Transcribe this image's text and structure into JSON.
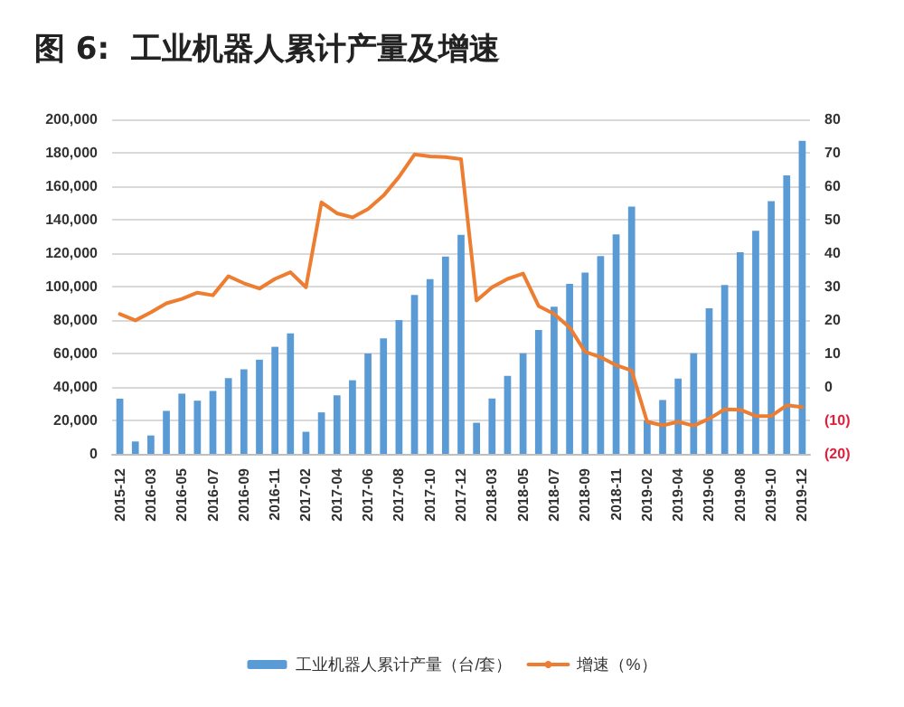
{
  "chart_data": {
    "type": "bar",
    "title": "图 6:  工业机器人累计产量及增速",
    "categories": [
      "2015-12",
      null,
      "2016-03",
      null,
      "2016-05",
      null,
      "2016-07",
      null,
      "2016-09",
      null,
      "2016-11",
      null,
      "2017-02",
      null,
      "2017-04",
      null,
      "2017-06",
      null,
      "2017-08",
      null,
      "2017-10",
      null,
      "2017-12",
      null,
      "2018-03",
      null,
      "2018-05",
      null,
      "2018-07",
      null,
      "2018-09",
      null,
      "2018-11",
      null,
      "2019-02",
      null,
      "2019-04",
      null,
      "2019-06",
      null,
      "2019-08",
      null,
      "2019-10",
      null,
      "2019-12"
    ],
    "series": [
      {
        "name": "工业机器人累计产量（台/套）",
        "color": "#5b9bd5",
        "values": [
          33000,
          7400,
          11000,
          25700,
          36000,
          31800,
          37600,
          45300,
          50500,
          56300,
          64000,
          72000,
          13200,
          24800,
          35000,
          44000,
          60000,
          69000,
          80000,
          95000,
          104500,
          118000,
          131000,
          18600,
          33100,
          46600,
          60100,
          74000,
          88000,
          101600,
          108400,
          118300,
          131200,
          147900,
          20000,
          32200,
          45000,
          60100,
          87000,
          101000,
          120600,
          133400,
          151100,
          166500,
          187100
        ]
      },
      {
        "name": "增速（%）",
        "type": "line",
        "axis": "y2",
        "color": "#ed7d31",
        "values": [
          21.8,
          19.9,
          22.3,
          25.0,
          26.3,
          28.2,
          27.4,
          33.1,
          31.0,
          29.4,
          32.3,
          34.3,
          29.8,
          55.2,
          51.9,
          50.7,
          53.2,
          57.2,
          62.8,
          69.5,
          68.9,
          68.7,
          68.1,
          25.8,
          29.8,
          32.3,
          33.9,
          24.2,
          21.8,
          17.8,
          10.5,
          8.9,
          6.5,
          4.9,
          -10.4,
          -11.5,
          -10.4,
          -11.6,
          -9.5,
          -6.7,
          -6.8,
          -8.7,
          -8.7,
          -5.5,
          -6.0
        ]
      }
    ],
    "ylim": [
      0,
      200000
    ],
    "yticks": [
      {
        "value": 0,
        "label": "0"
      },
      {
        "value": 20000,
        "label": "20,000"
      },
      {
        "value": 40000,
        "label": "40,000"
      },
      {
        "value": 60000,
        "label": "60,000"
      },
      {
        "value": 80000,
        "label": "80,000"
      },
      {
        "value": 100000,
        "label": "100,000"
      },
      {
        "value": 120000,
        "label": "120,000"
      },
      {
        "value": 140000,
        "label": "140,000"
      },
      {
        "value": 160000,
        "label": "160,000"
      },
      {
        "value": 180000,
        "label": "180,000"
      },
      {
        "value": 200000,
        "label": "200,000"
      }
    ],
    "y2lim": [
      -20,
      80
    ],
    "y2ticks": [
      {
        "value": -20,
        "label": "(20)"
      },
      {
        "value": -10,
        "label": "(10)"
      },
      0,
      10,
      20,
      30,
      40,
      50,
      60,
      70,
      80
    ],
    "grid": "y",
    "legend": "bottom",
    "marker": "none",
    "line_style": "solid"
  }
}
